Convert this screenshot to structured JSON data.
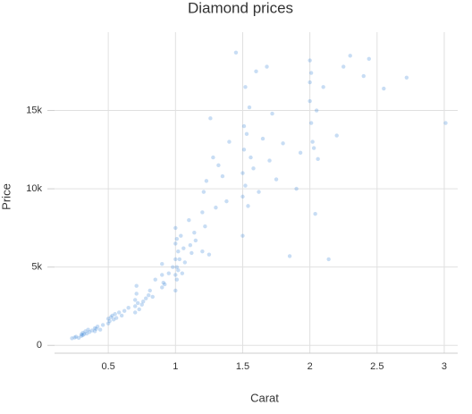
{
  "chart_data": {
    "type": "scatter",
    "title": "Diamond prices",
    "x_label": "Carat",
    "y_label": "Price",
    "color": "#4a90d9",
    "grid": true,
    "xlim": [
      0.1,
      3.1
    ],
    "ylim": [
      -500,
      20000
    ],
    "xticks": [
      0.5,
      1,
      1.5,
      2,
      2.5,
      3
    ],
    "yticks": [
      0,
      {
        "value": 5000,
        "label": "5k"
      },
      {
        "value": 10000,
        "label": "10k"
      },
      {
        "value": 15000,
        "label": "15k"
      }
    ],
    "x": [
      0.23,
      0.25,
      0.26,
      0.28,
      0.3,
      0.3,
      0.31,
      0.31,
      0.32,
      0.33,
      0.34,
      0.35,
      0.36,
      0.38,
      0.4,
      0.4,
      0.41,
      0.42,
      0.44,
      0.46,
      0.5,
      0.5,
      0.51,
      0.52,
      0.53,
      0.54,
      0.55,
      0.56,
      0.58,
      0.6,
      0.62,
      0.65,
      0.7,
      0.7,
      0.7,
      0.71,
      0.71,
      0.72,
      0.73,
      0.75,
      0.76,
      0.78,
      0.8,
      0.81,
      0.83,
      0.85,
      0.9,
      0.9,
      0.9,
      0.91,
      0.92,
      0.95,
      0.98,
      1,
      1,
      1,
      1,
      1,
      1.01,
      1.01,
      1.01,
      1.02,
      1.02,
      1.03,
      1.04,
      1.05,
      1.06,
      1.07,
      1.1,
      1.11,
      1.12,
      1.14,
      1.15,
      1.2,
      1.2,
      1.21,
      1.22,
      1.23,
      1.25,
      1.26,
      1.28,
      1.3,
      1.32,
      1.35,
      1.38,
      1.4,
      1.45,
      1.5,
      1.5,
      1.5,
      1.51,
      1.51,
      1.52,
      1.52,
      1.53,
      1.54,
      1.55,
      1.56,
      1.58,
      1.6,
      1.62,
      1.65,
      1.68,
      1.7,
      1.72,
      1.75,
      1.8,
      1.85,
      1.9,
      1.93,
      2,
      2,
      2,
      2.01,
      2.01,
      2.02,
      2.03,
      2.04,
      2.05,
      2.06,
      2.1,
      2.14,
      2.2,
      2.25,
      2.3,
      2.4,
      2.44,
      2.55,
      2.72,
      3.01
    ],
    "y": [
      450,
      500,
      550,
      480,
      600,
      700,
      650,
      800,
      720,
      900,
      750,
      1000,
      850,
      950,
      1100,
      900,
      1050,
      1200,
      1000,
      1300,
      1400,
      1700,
      1550,
      1800,
      1900,
      1650,
      2000,
      1750,
      2100,
      1900,
      2200,
      2400,
      2100,
      2500,
      2900,
      3300,
      3800,
      2700,
      2300,
      2600,
      2800,
      3000,
      3200,
      3500,
      3100,
      4200,
      3700,
      4500,
      5200,
      4000,
      3900,
      4600,
      5000,
      3500,
      4500,
      5500,
      6500,
      7500,
      4200,
      5000,
      6800,
      4800,
      6000,
      5500,
      7000,
      4600,
      6200,
      5300,
      8000,
      6400,
      5900,
      7200,
      6700,
      8500,
      6000,
      9800,
      7600,
      10500,
      5800,
      14500,
      12000,
      8800,
      11500,
      10800,
      9200,
      13000,
      18700,
      7000,
      9500,
      11000,
      12500,
      14000,
      16500,
      10200,
      13500,
      8900,
      15200,
      12000,
      11300,
      17500,
      9800,
      13200,
      17800,
      11800,
      14800,
      10600,
      12900,
      5700,
      10000,
      12300,
      18200,
      16800,
      15600,
      14200,
      17400,
      13000,
      12600,
      8400,
      15000,
      11900,
      16500,
      5500,
      13400,
      17800,
      18500,
      17200,
      18300,
      16400,
      17100,
      14200
    ]
  }
}
